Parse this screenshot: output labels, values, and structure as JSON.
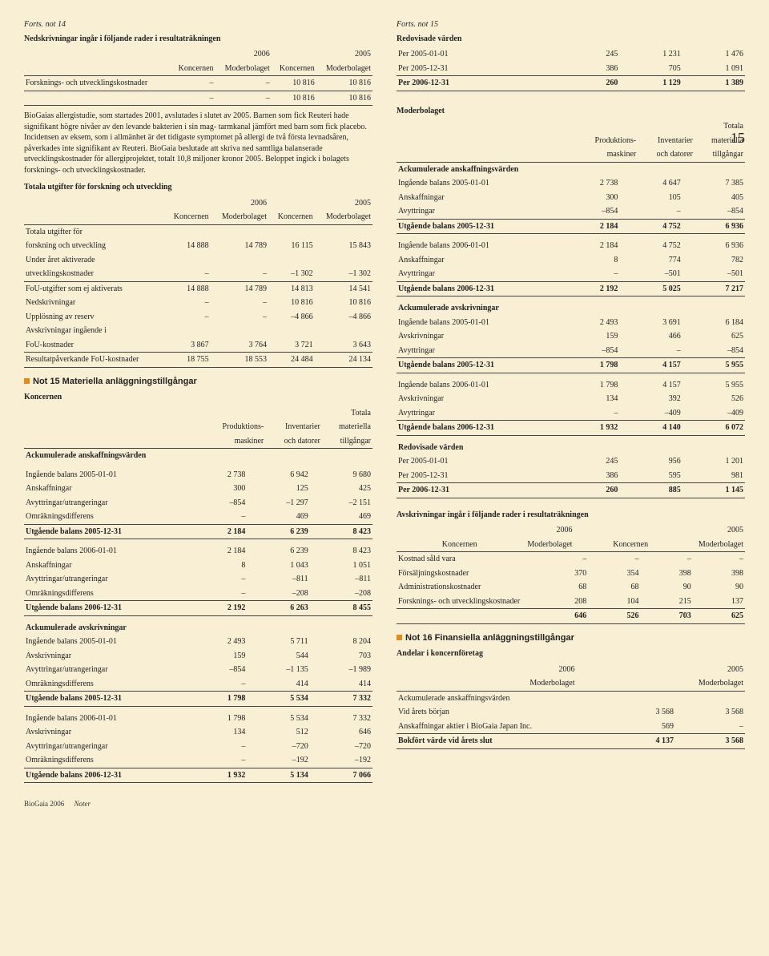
{
  "page_number": "15",
  "footer": {
    "brand": "BioGaia 2006",
    "section": "Noter"
  },
  "left": {
    "note14": {
      "cont": "Forts. not 14",
      "title": "Nedskrivningar ingår i följande rader i resultaträkningen",
      "year_a": "2006",
      "year_b": "2005",
      "h_konc": "Koncernen",
      "h_mod": "Moderbolaget",
      "row1_lbl": "Forsknings- och utvecklingskostnader",
      "row1": [
        "–",
        "–",
        "10 816",
        "10 816"
      ],
      "row_tot": [
        "–",
        "–",
        "10 816",
        "10 816"
      ],
      "para": "BioGaias allergistudie, som startades 2001, avslutades i slutet av 2005. Barnen som fick Reuteri hade signifikant högre nivåer av den levande bakterien i sin mag- tarmkanal jämfört med barn som fick placebo. Incidensen av eksem, som i allmänhet är det tidigaste symptomet på allergi de två första levnadsåren, påverkades inte signifikant av Reuteri. BioGaia beslutade att skriva ned samtliga balanserade utvecklingskostnader för allergiprojektet, totalt 10,8 miljoner kronor 2005. Beloppet ingick i bolagets forsknings- och utvecklingskostnader.",
      "sub_title": "Totala utgifter för forskning och utveckling",
      "t2": {
        "year_a": "2006",
        "year_b": "2005",
        "h_konc": "Koncernen",
        "h_mod": "Moderbolaget",
        "r1a": "Totala utgifter för",
        "r1b": "forskning och utveckling",
        "r1": [
          "14 888",
          "14 789",
          "16 115",
          "15 843"
        ],
        "r2a": "Under året aktiverade",
        "r2b": "utvecklingskostnader",
        "r2": [
          "–",
          "–",
          "–1 302",
          "–1 302"
        ],
        "r3_lbl": "FoU-utgifter som ej aktiverats",
        "r3": [
          "14 888",
          "14 789",
          "14 813",
          "14 541"
        ],
        "r4_lbl": "Nedskrivningar",
        "r4": [
          "–",
          "–",
          "10 816",
          "10 816"
        ],
        "r5_lbl": "Upplösning av reserv",
        "r5": [
          "–",
          "–",
          "–4 866",
          "–4 866"
        ],
        "r6a": "Avskrivningar ingående i",
        "r6b": "FoU-kostnader",
        "r6": [
          "3 867",
          "3 764",
          "3 721",
          "3 643"
        ],
        "r7_lbl": "Resultatpåverkande FoU-kostnader",
        "r7": [
          "18 755",
          "18 553",
          "24 484",
          "24 134"
        ]
      }
    },
    "note15": {
      "heading": "Not 15 Materiella anläggningstillgångar",
      "konc_lbl": "Koncernen",
      "h1": "Produktions-",
      "h1b": "maskiner",
      "h2": "Inventarier",
      "h2b": "och datorer",
      "h3": "Totala",
      "h3b": "materiella",
      "h3c": "tillgångar",
      "sec1": "Ackumulerade anskaffningsvärden",
      "rows_a": [
        [
          "Ingående balans 2005-01-01",
          "2 738",
          "6 942",
          "9 680"
        ],
        [
          "Anskaffningar",
          "300",
          "125",
          "425"
        ],
        [
          "Avyttringar/utrangeringar",
          "–854",
          "–1 297",
          "–2 151"
        ],
        [
          "Omräkningsdifferens",
          "–",
          "469",
          "469"
        ]
      ],
      "sum_a": [
        "Utgående balans 2005-12-31",
        "2 184",
        "6 239",
        "8 423"
      ],
      "rows_b": [
        [
          "Ingående balans 2006-01-01",
          "2 184",
          "6 239",
          "8 423"
        ],
        [
          "Anskaffningar",
          "8",
          "1 043",
          "1 051"
        ],
        [
          "Avyttringar/utrangeringar",
          "–",
          "–811",
          "–811"
        ],
        [
          "Omräkningsdifferens",
          "–",
          "–208",
          "–208"
        ]
      ],
      "sum_b": [
        "Utgående balans 2006-12-31",
        "2 192",
        "6 263",
        "8 455"
      ],
      "sec2": "Ackumulerade avskrivningar",
      "rows_c": [
        [
          "Ingående balans 2005-01-01",
          "2 493",
          "5 711",
          "8 204"
        ],
        [
          "Avskrivningar",
          "159",
          "544",
          "703"
        ],
        [
          "Avyttringar/utrangeringar",
          "–854",
          "–1 135",
          "–1 989"
        ],
        [
          "Omräkningsdifferens",
          "–",
          "414",
          "414"
        ]
      ],
      "sum_c": [
        "Utgående balans 2005-12-31",
        "1 798",
        "5 534",
        "7 332"
      ],
      "rows_d": [
        [
          "Ingående balans 2006-01-01",
          "1 798",
          "5 534",
          "7 332"
        ],
        [
          "Avskrivningar",
          "134",
          "512",
          "646"
        ],
        [
          "Avyttringar/utrangeringar",
          "–",
          "–720",
          "–720"
        ],
        [
          "Omräkningsdifferens",
          "–",
          "–192",
          "–192"
        ]
      ],
      "sum_d": [
        "Utgående balans 2006-12-31",
        "1 932",
        "5 134",
        "7 066"
      ]
    }
  },
  "right": {
    "note15b": {
      "cont": "Forts. not 15",
      "title": "Redovisade värden",
      "rows": [
        [
          "Per 2005-01-01",
          "245",
          "1 231",
          "1 476"
        ],
        [
          "Per 2005-12-31",
          "386",
          "705",
          "1 091"
        ]
      ],
      "sum": [
        "Per 2006-12-31",
        "260",
        "1 129",
        "1 389"
      ]
    },
    "moder": {
      "lbl": "Moderbolaget",
      "h1": "Produktions-",
      "h1b": "maskiner",
      "h2": "Inventarier",
      "h2b": "och datorer",
      "h3": "Totala",
      "h3b": "materiella",
      "h3c": "tillgångar",
      "sec1": "Ackumulerade anskaffningsvärden",
      "ra": [
        [
          "Ingående balans 2005-01-01",
          "2 738",
          "4 647",
          "7 385"
        ],
        [
          "Anskaffningar",
          "300",
          "105",
          "405"
        ],
        [
          "Avyttringar",
          "–854",
          "–",
          "–854"
        ]
      ],
      "sa": [
        "Utgående balans 2005-12-31",
        "2 184",
        "4 752",
        "6 936"
      ],
      "rb": [
        [
          "Ingående balans 2006-01-01",
          "2 184",
          "4 752",
          "6 936"
        ],
        [
          "Anskaffningar",
          "8",
          "774",
          "782"
        ],
        [
          "Avyttringar",
          "–",
          "–501",
          "–501"
        ]
      ],
      "sb": [
        "Utgående balans 2006-12-31",
        "2 192",
        "5 025",
        "7 217"
      ],
      "sec2": "Ackumulerade avskrivningar",
      "rc": [
        [
          "Ingående balans 2005-01-01",
          "2 493",
          "3 691",
          "6 184"
        ],
        [
          "Avskrivningar",
          "159",
          "466",
          "625"
        ],
        [
          "Avyttringar",
          "–854",
          "–",
          "–854"
        ]
      ],
      "sc": [
        "Utgående balans 2005-12-31",
        "1 798",
        "4 157",
        "5 955"
      ],
      "rd": [
        [
          "Ingående balans 2006-01-01",
          "1 798",
          "4 157",
          "5 955"
        ],
        [
          "Avskrivningar",
          "134",
          "392",
          "526"
        ],
        [
          "Avyttringar",
          "–",
          "–409",
          "–409"
        ]
      ],
      "sd": [
        "Utgående balans 2006-12-31",
        "1 932",
        "4 140",
        "6 072"
      ],
      "sec3": "Redovisade värden",
      "re": [
        [
          "Per 2005-01-01",
          "245",
          "956",
          "1 201"
        ],
        [
          "Per 2005-12-31",
          "386",
          "595",
          "981"
        ]
      ],
      "se": [
        "Per 2006-12-31",
        "260",
        "885",
        "1 145"
      ]
    },
    "avskr": {
      "title": "Avskrivningar ingår i följande rader i resultaträkningen",
      "year_a": "2006",
      "year_b": "2005",
      "h_konc": "Koncernen",
      "h_mod": "Moderbolaget",
      "rows": [
        [
          "Kostnad såld vara",
          "–",
          "–",
          "–",
          "–"
        ],
        [
          "Försäljningskostnader",
          "370",
          "354",
          "398",
          "398"
        ],
        [
          "Administrationskostnader",
          "68",
          "68",
          "90",
          "90"
        ],
        [
          "Forsknings- och utvecklingskostnader",
          "208",
          "104",
          "215",
          "137"
        ]
      ],
      "sum": [
        "",
        "646",
        "526",
        "703",
        "625"
      ]
    },
    "note16": {
      "heading": "Not 16 Finansiella anläggningstillgångar",
      "sub": "Andelar i koncernföretag",
      "year_a": "2006",
      "year_b": "2005",
      "h_mod": "Moderbolaget",
      "rows": [
        [
          "Ackumulerade anskaffningsvärden",
          "",
          ""
        ],
        [
          "Vid årets början",
          "3 568",
          "3 568"
        ],
        [
          "Anskaffningar aktier i BioGaia Japan Inc.",
          "569",
          "–"
        ]
      ],
      "sum": [
        "Bokfört värde vid årets slut",
        "4 137",
        "3 568"
      ]
    }
  }
}
